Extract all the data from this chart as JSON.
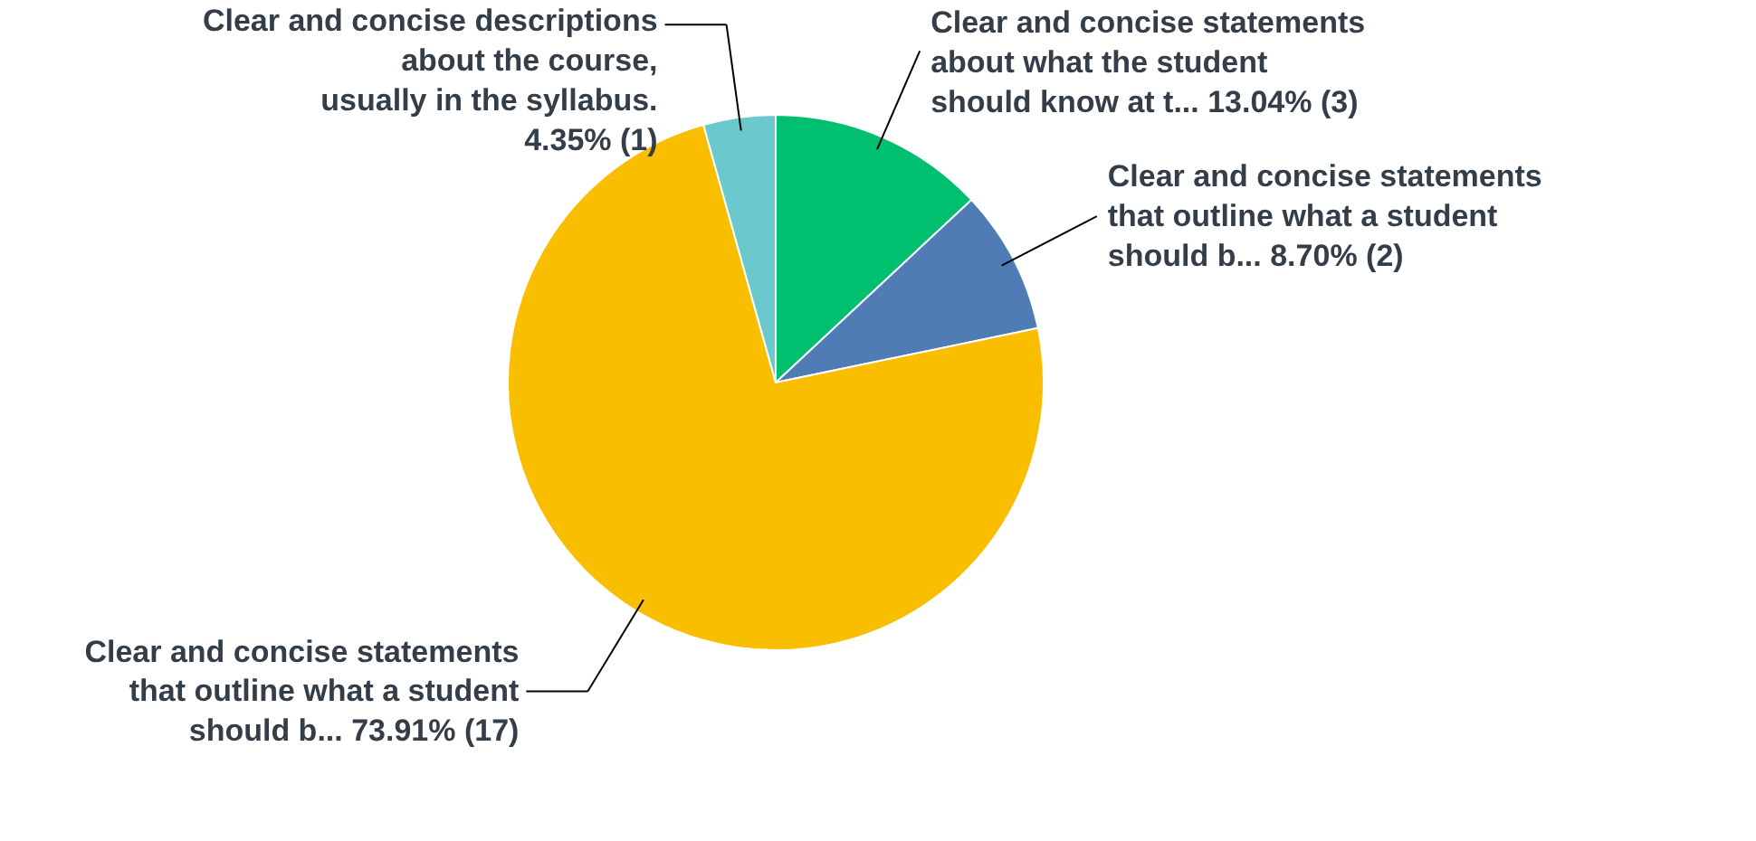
{
  "chart_data": {
    "type": "pie",
    "categories": [
      "Clear and concise statements\nabout what the student\nshould know at t...",
      "Clear and concise statements\nthat outline what a student\nshould b...",
      "Clear and concise statements\nthat outline what a student\nshould b...",
      "Clear and concise descriptions\nabout the course,\nusually in the syllabus.\n"
    ],
    "values": [
      13.04,
      8.7,
      73.91,
      4.35
    ],
    "value_labels": [
      "13.04% (3)",
      "8.70% (2)",
      "73.91% (17)",
      "4.35% (1)"
    ],
    "colors": [
      "#00bf6f",
      "#507cb6",
      "#f9be00",
      "#6bc8cd"
    ]
  }
}
